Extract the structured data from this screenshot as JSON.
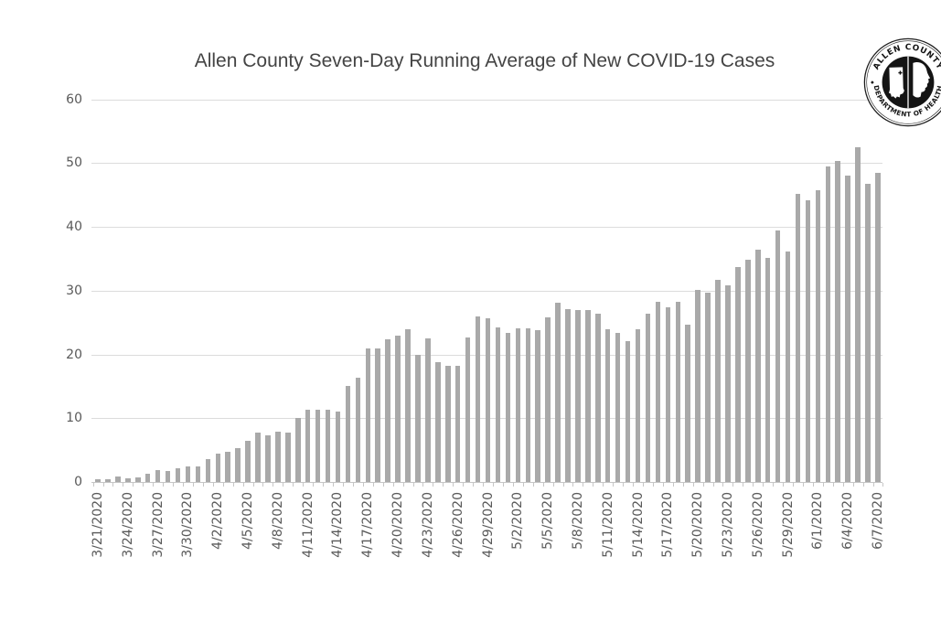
{
  "chart_data": {
    "type": "bar",
    "title": "Allen County Seven-Day Running Average of New COVID-19 Cases",
    "xlabel": "",
    "ylabel": "",
    "ylim": [
      0,
      60
    ],
    "y_ticks": [
      0,
      10,
      20,
      30,
      40,
      50,
      60
    ],
    "grid": true,
    "legend": "none",
    "bar_color": "#a9a9a9",
    "gridline_color": "#dcdcdc",
    "axis_color": "#c6c6c6",
    "label_color": "#595959",
    "title_color": "#444444",
    "categories": [
      "3/21/2020",
      "3/22/2020",
      "3/23/2020",
      "3/24/2020",
      "3/25/2020",
      "3/26/2020",
      "3/27/2020",
      "3/28/2020",
      "3/29/2020",
      "3/30/2020",
      "3/31/2020",
      "4/1/2020",
      "4/2/2020",
      "4/3/2020",
      "4/4/2020",
      "4/5/2020",
      "4/6/2020",
      "4/7/2020",
      "4/8/2020",
      "4/9/2020",
      "4/10/2020",
      "4/11/2020",
      "4/12/2020",
      "4/13/2020",
      "4/14/2020",
      "4/15/2020",
      "4/16/2020",
      "4/17/2020",
      "4/18/2020",
      "4/19/2020",
      "4/20/2020",
      "4/21/2020",
      "4/22/2020",
      "4/23/2020",
      "4/24/2020",
      "4/25/2020",
      "4/26/2020",
      "4/27/2020",
      "4/28/2020",
      "4/29/2020",
      "4/30/2020",
      "5/1/2020",
      "5/2/2020",
      "5/3/2020",
      "5/4/2020",
      "5/5/2020",
      "5/6/2020",
      "5/7/2020",
      "5/8/2020",
      "5/9/2020",
      "5/10/2020",
      "5/11/2020",
      "5/12/2020",
      "5/13/2020",
      "5/14/2020",
      "5/15/2020",
      "5/16/2020",
      "5/17/2020",
      "5/18/2020",
      "5/19/2020",
      "5/20/2020",
      "5/21/2020",
      "5/22/2020",
      "5/23/2020",
      "5/24/2020",
      "5/25/2020",
      "5/26/2020",
      "5/27/2020",
      "5/28/2020",
      "5/29/2020",
      "5/30/2020",
      "5/31/2020",
      "6/1/2020",
      "6/2/2020",
      "6/3/2020",
      "6/4/2020",
      "6/5/2020",
      "6/6/2020",
      "6/7/2020"
    ],
    "values": [
      0.4,
      0.4,
      0.9,
      0.6,
      0.7,
      1.3,
      1.8,
      1.7,
      2.1,
      2.5,
      2.5,
      3.6,
      4.4,
      4.7,
      5.3,
      6.4,
      7.7,
      7.3,
      7.9,
      7.7,
      10.1,
      11.3,
      11.4,
      11.3,
      11.0,
      15.1,
      16.3,
      21.0,
      21.0,
      22.4,
      22.9,
      24.0,
      20.0,
      22.5,
      18.8,
      18.2,
      18.2,
      22.6,
      25.9,
      25.6,
      24.2,
      23.4,
      24.1,
      24.1,
      23.8,
      25.8,
      28.1,
      27.1,
      26.9,
      26.9,
      26.4,
      23.9,
      23.4,
      22.1,
      24.0,
      26.4,
      28.3,
      27.4,
      28.2,
      24.7,
      30.1,
      29.7,
      31.7,
      30.9,
      33.7,
      34.8,
      36.4,
      35.1,
      39.5,
      36.1,
      45.2,
      44.2,
      45.7,
      49.4,
      50.4,
      48.0,
      52.5,
      46.8,
      48.5
    ],
    "x_tick_labels": [
      "3/21/2020",
      "3/24/2020",
      "3/27/2020",
      "3/30/2020",
      "4/2/2020",
      "4/5/2020",
      "4/8/2020",
      "4/11/2020",
      "4/14/2020",
      "4/17/2020",
      "4/20/2020",
      "4/23/2020",
      "4/26/2020",
      "4/29/2020",
      "5/2/2020",
      "5/5/2020",
      "5/8/2020",
      "5/11/2020",
      "5/14/2020",
      "5/17/2020",
      "5/20/2020",
      "5/23/2020",
      "5/26/2020",
      "5/29/2020",
      "6/1/2020",
      "6/4/2020",
      "6/7/2020"
    ],
    "x_tick_every": 3
  },
  "logo": {
    "text_top": "ALLEN COUNTY",
    "text_bottom": "DEPARTMENT OF HEALTH"
  }
}
